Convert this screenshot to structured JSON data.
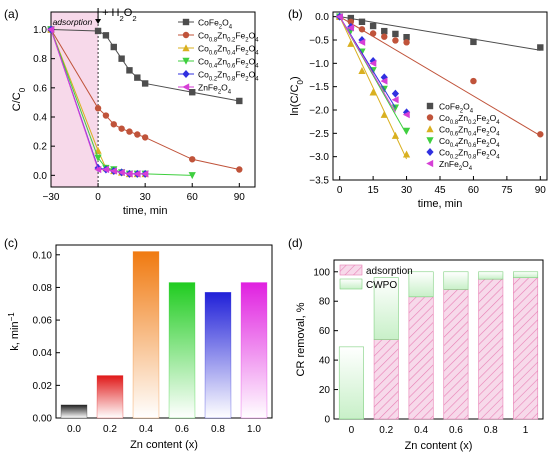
{
  "colors": {
    "CoFe2O4": "#4d4d4d",
    "Co0.8Zn0.2Fe2O4": "#c0533a",
    "Co0.6Zn0.4Fe2O4": "#d9b020",
    "Co0.4Zn0.6Fe2O4": "#3fcf3f",
    "Co0.2Zn0.8Fe2O4": "#3030e0",
    "ZnFe2O4": "#d63fd6",
    "adsorption_shade": "#f7d9ea",
    "adsorption_hatch": "#e87fb5",
    "cwpo_fill": "#c8f0c8"
  },
  "chart_data": [
    {
      "panel": "(a)",
      "type": "line",
      "xlabel": "time, min",
      "ylabel": "C/C0",
      "xlim": [
        -30,
        100
      ],
      "ylim": [
        -0.08,
        1.12
      ],
      "xticks": [
        -30,
        0,
        30,
        60,
        90
      ],
      "yticks": [
        0.0,
        0.2,
        0.4,
        0.6,
        0.8,
        1.0
      ],
      "annotations": [
        "adsorption",
        "+ H2O2"
      ],
      "legend_position": "top-right",
      "series": [
        {
          "name": "CoFe2O4",
          "marker": "square",
          "x": [
            -30,
            0,
            5,
            10,
            15,
            20,
            25,
            30,
            60,
            90
          ],
          "y": [
            1.0,
            0.99,
            0.96,
            0.88,
            0.8,
            0.72,
            0.67,
            0.63,
            0.57,
            0.51
          ]
        },
        {
          "name": "Co0.8Zn0.2Fe2O4",
          "marker": "circle",
          "x": [
            -30,
            0,
            5,
            10,
            15,
            20,
            25,
            30,
            60,
            90
          ],
          "y": [
            1.0,
            0.46,
            0.41,
            0.35,
            0.32,
            0.3,
            0.28,
            0.26,
            0.11,
            0.04
          ]
        },
        {
          "name": "Co0.6Zn0.4Fe2O4",
          "marker": "triangle-up",
          "x": [
            -30,
            0,
            5,
            10,
            15,
            20,
            25,
            30
          ],
          "y": [
            1.0,
            0.17,
            0.05,
            0.03,
            0.02,
            0.01,
            0.01,
            0.01
          ]
        },
        {
          "name": "Co0.4Zn0.6Fe2O4",
          "marker": "triangle-down",
          "x": [
            -30,
            0,
            5,
            10,
            15,
            20,
            25,
            30,
            60
          ],
          "y": [
            1.0,
            0.12,
            0.05,
            0.04,
            0.02,
            0.01,
            0.01,
            0.01,
            0.0
          ]
        },
        {
          "name": "Co0.2Zn0.8Fe2O4",
          "marker": "diamond",
          "x": [
            -30,
            0,
            5,
            10,
            15,
            20,
            25,
            30
          ],
          "y": [
            1.0,
            0.05,
            0.04,
            0.03,
            0.02,
            0.01,
            0.01,
            0.01
          ]
        },
        {
          "name": "ZnFe2O4",
          "marker": "triangle-left",
          "x": [
            -30,
            0,
            5,
            10,
            15,
            20,
            25,
            30
          ],
          "y": [
            1.0,
            0.04,
            0.04,
            0.03,
            0.02,
            0.01,
            0.01,
            0.01
          ]
        }
      ]
    },
    {
      "panel": "(b)",
      "type": "scatter",
      "xlabel": "time, min",
      "ylabel": "ln(C/C0)",
      "xlim": [
        -3,
        93
      ],
      "ylim": [
        -3.5,
        0.1
      ],
      "xticks": [
        0,
        15,
        30,
        45,
        60,
        75,
        90
      ],
      "yticks": [
        0.0,
        -0.5,
        -1.0,
        -1.5,
        -2.0,
        -2.5,
        -3.0,
        -3.5
      ],
      "legend_position": "bottom-right",
      "series": [
        {
          "name": "CoFe2O4",
          "marker": "square",
          "x": [
            0,
            5,
            10,
            15,
            20,
            25,
            30,
            60,
            90
          ],
          "y": [
            0,
            -0.03,
            -0.11,
            -0.2,
            -0.31,
            -0.37,
            -0.44,
            -0.54,
            -0.66
          ],
          "fit": [
            [
              0,
              0
            ],
            [
              90,
              -0.72
            ]
          ]
        },
        {
          "name": "Co0.8Zn0.2Fe2O4",
          "marker": "circle",
          "x": [
            0,
            5,
            10,
            15,
            20,
            25,
            30,
            60,
            90
          ],
          "y": [
            0,
            -0.11,
            -0.27,
            -0.36,
            -0.43,
            -0.51,
            -0.55,
            -1.38,
            -2.52
          ],
          "fit": [
            [
              0,
              0
            ],
            [
              90,
              -2.55
            ]
          ]
        },
        {
          "name": "Co0.6Zn0.4Fe2O4",
          "marker": "triangle-up",
          "x": [
            0,
            5,
            10,
            15,
            20,
            25,
            30
          ],
          "y": [
            0,
            -0.58,
            -1.16,
            -1.62,
            -2.1,
            -2.55,
            -2.95
          ],
          "fit": [
            [
              0,
              0
            ],
            [
              30,
              -3.05
            ]
          ]
        },
        {
          "name": "Co0.4Zn0.6Fe2O4",
          "marker": "triangle-down",
          "x": [
            0,
            5,
            10,
            15,
            20,
            25,
            30
          ],
          "y": [
            0,
            -0.3,
            -0.75,
            -1.15,
            -1.55,
            -1.95,
            -2.45
          ],
          "fit": [
            [
              0,
              0
            ],
            [
              30,
              -2.52
            ]
          ]
        },
        {
          "name": "Co0.2Zn0.8Fe2O4",
          "marker": "diamond",
          "x": [
            0,
            5,
            10,
            15,
            20,
            25,
            30
          ],
          "y": [
            0,
            -0.22,
            -0.5,
            -0.95,
            -1.3,
            -1.65,
            -2.05
          ],
          "fit": [
            [
              0,
              0
            ],
            [
              25,
              -1.95
            ]
          ]
        },
        {
          "name": "ZnFe2O4",
          "marker": "triangle-left",
          "x": [
            0,
            5,
            10,
            15,
            20,
            25,
            30
          ],
          "y": [
            0,
            -0.24,
            -0.55,
            -1.0,
            -1.38,
            -1.78,
            -2.1
          ],
          "fit": [
            [
              0,
              0
            ],
            [
              25,
              -2.05
            ]
          ]
        }
      ]
    },
    {
      "panel": "(c)",
      "type": "bar",
      "xlabel": "Zn content (x)",
      "ylabel": "k, min-1",
      "ylim": [
        0,
        0.106
      ],
      "yticks": [
        0.0,
        0.02,
        0.04,
        0.06,
        0.08,
        0.1
      ],
      "categories": [
        "0.0",
        "0.2",
        "0.4",
        "0.6",
        "0.8",
        "1.0"
      ],
      "values": [
        0.008,
        0.026,
        0.102,
        0.083,
        0.077,
        0.083
      ],
      "bar_colors": [
        "#222222",
        "#e01818",
        "#f07a10",
        "#20cc20",
        "#2020d8",
        "#e020e0"
      ]
    },
    {
      "panel": "(d)",
      "type": "bar",
      "stacked": true,
      "xlabel": "Zn content (x)",
      "ylabel": "CR removal, %",
      "ylim": [
        0,
        108
      ],
      "yticks": [
        0,
        20,
        40,
        60,
        80,
        100
      ],
      "categories": [
        "0",
        "0.2",
        "0.4",
        "0.6",
        "0.8",
        "1"
      ],
      "legend_position": "top-left",
      "series": [
        {
          "name": "adsorption",
          "values": [
            0,
            54,
            83,
            88,
            95,
            96
          ]
        },
        {
          "name": "CWPO",
          "values": [
            49,
            42,
            17,
            12,
            5,
            4
          ]
        }
      ]
    }
  ]
}
